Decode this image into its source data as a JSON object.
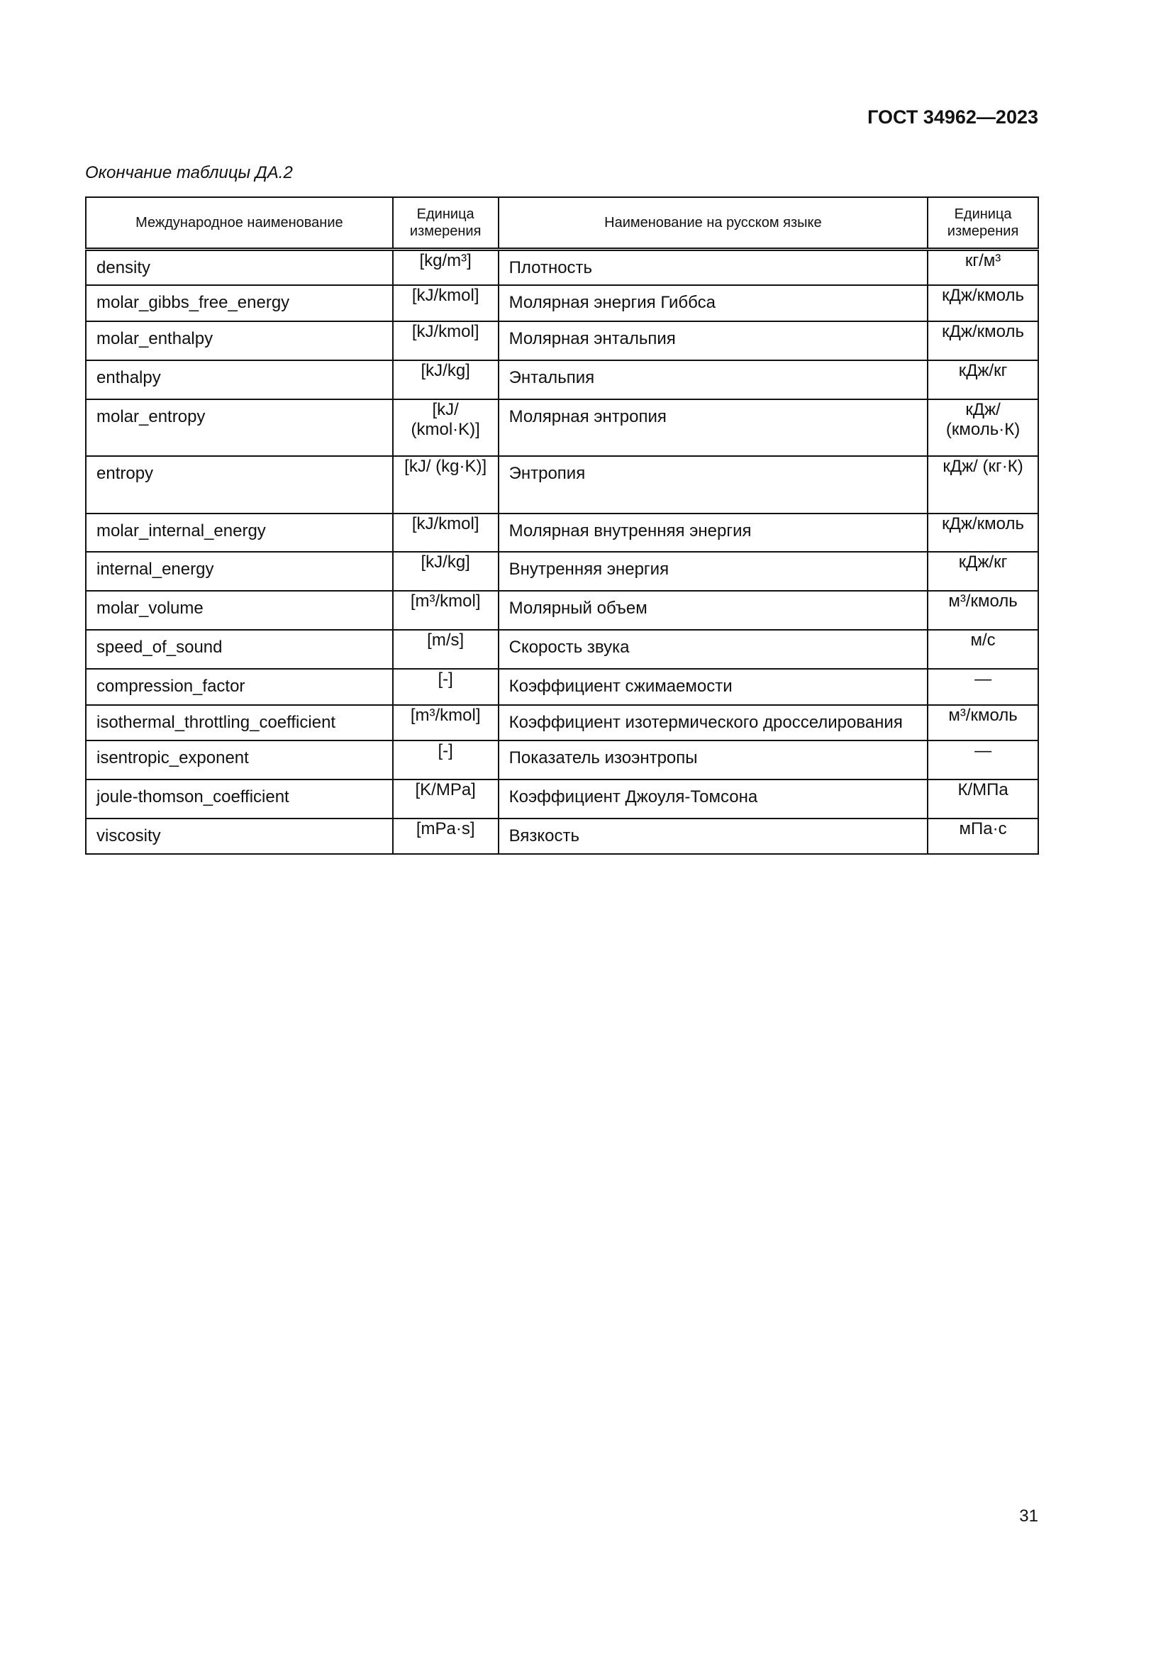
{
  "header": {
    "doc_code": "ГОСТ 34962—2023"
  },
  "caption": "Окончание таблицы ДА.2",
  "table": {
    "columns": [
      "Международное наименование",
      "Единица измерения",
      "Наименование на русском языке",
      "Единица измерения"
    ],
    "rows": [
      {
        "name": "density",
        "unit": "[kg/m³]",
        "ru_name": "Плотность",
        "ru_unit": "кг/м³"
      },
      {
        "name": "molar_gibbs_free_energy",
        "unit": "[kJ/kmol]",
        "ru_name": "Молярная энергия Гиббса",
        "ru_unit": "кДж/кмоль"
      },
      {
        "name": "molar_enthalpy",
        "unit": "[kJ/kmol]",
        "ru_name": "Молярная энтальпия",
        "ru_unit": "кДж/кмоль"
      },
      {
        "name": "enthalpy",
        "unit": "[kJ/kg]",
        "ru_name": "Энтальпия",
        "ru_unit": "кДж/кг"
      },
      {
        "name": "molar_entropy",
        "unit": "[kJ/ (kmol·K)]",
        "ru_name": "Молярная энтропия",
        "ru_unit": "кДж/ (кмоль·К)"
      },
      {
        "name": "entropy",
        "unit": "[kJ/ (kg·K)]",
        "ru_name": "Энтропия",
        "ru_unit": "кДж/ (кг·К)"
      },
      {
        "name": "molar_internal_energy",
        "unit": "[kJ/kmol]",
        "ru_name": "Молярная внутренняя энергия",
        "ru_unit": "кДж/кмоль"
      },
      {
        "name": "internal_energy",
        "unit": "[kJ/kg]",
        "ru_name": "Внутренняя энергия",
        "ru_unit": "кДж/кг"
      },
      {
        "name": "molar_volume",
        "unit": "[m³/kmol]",
        "ru_name": "Молярный объем",
        "ru_unit": "м³/кмоль"
      },
      {
        "name": "speed_of_sound",
        "unit": "[m/s]",
        "ru_name": "Скорость звука",
        "ru_unit": "м/с"
      },
      {
        "name": "compression_factor",
        "unit": "[-]",
        "ru_name": "Коэффициент сжимаемости",
        "ru_unit": "—"
      },
      {
        "name": "isothermal_throttling_coefficient",
        "unit": "[m³/kmol]",
        "ru_name": "Коэффициент изотермического дросселирования",
        "ru_unit": "м³/кмоль"
      },
      {
        "name": "isentropic_exponent",
        "unit": "[-]",
        "ru_name": "Показатель изоэнтропы",
        "ru_unit": "—"
      },
      {
        "name": "joule-thomson_coefficient",
        "unit": "[K/MPa]",
        "ru_name": "Коэффициент Джоуля-Томсона",
        "ru_unit": "К/МПа"
      },
      {
        "name": "viscosity",
        "unit": "[mPa·s]",
        "ru_name": "Вязкость",
        "ru_unit": "мПа·с"
      }
    ]
  },
  "footer": {
    "page_number": "31"
  }
}
